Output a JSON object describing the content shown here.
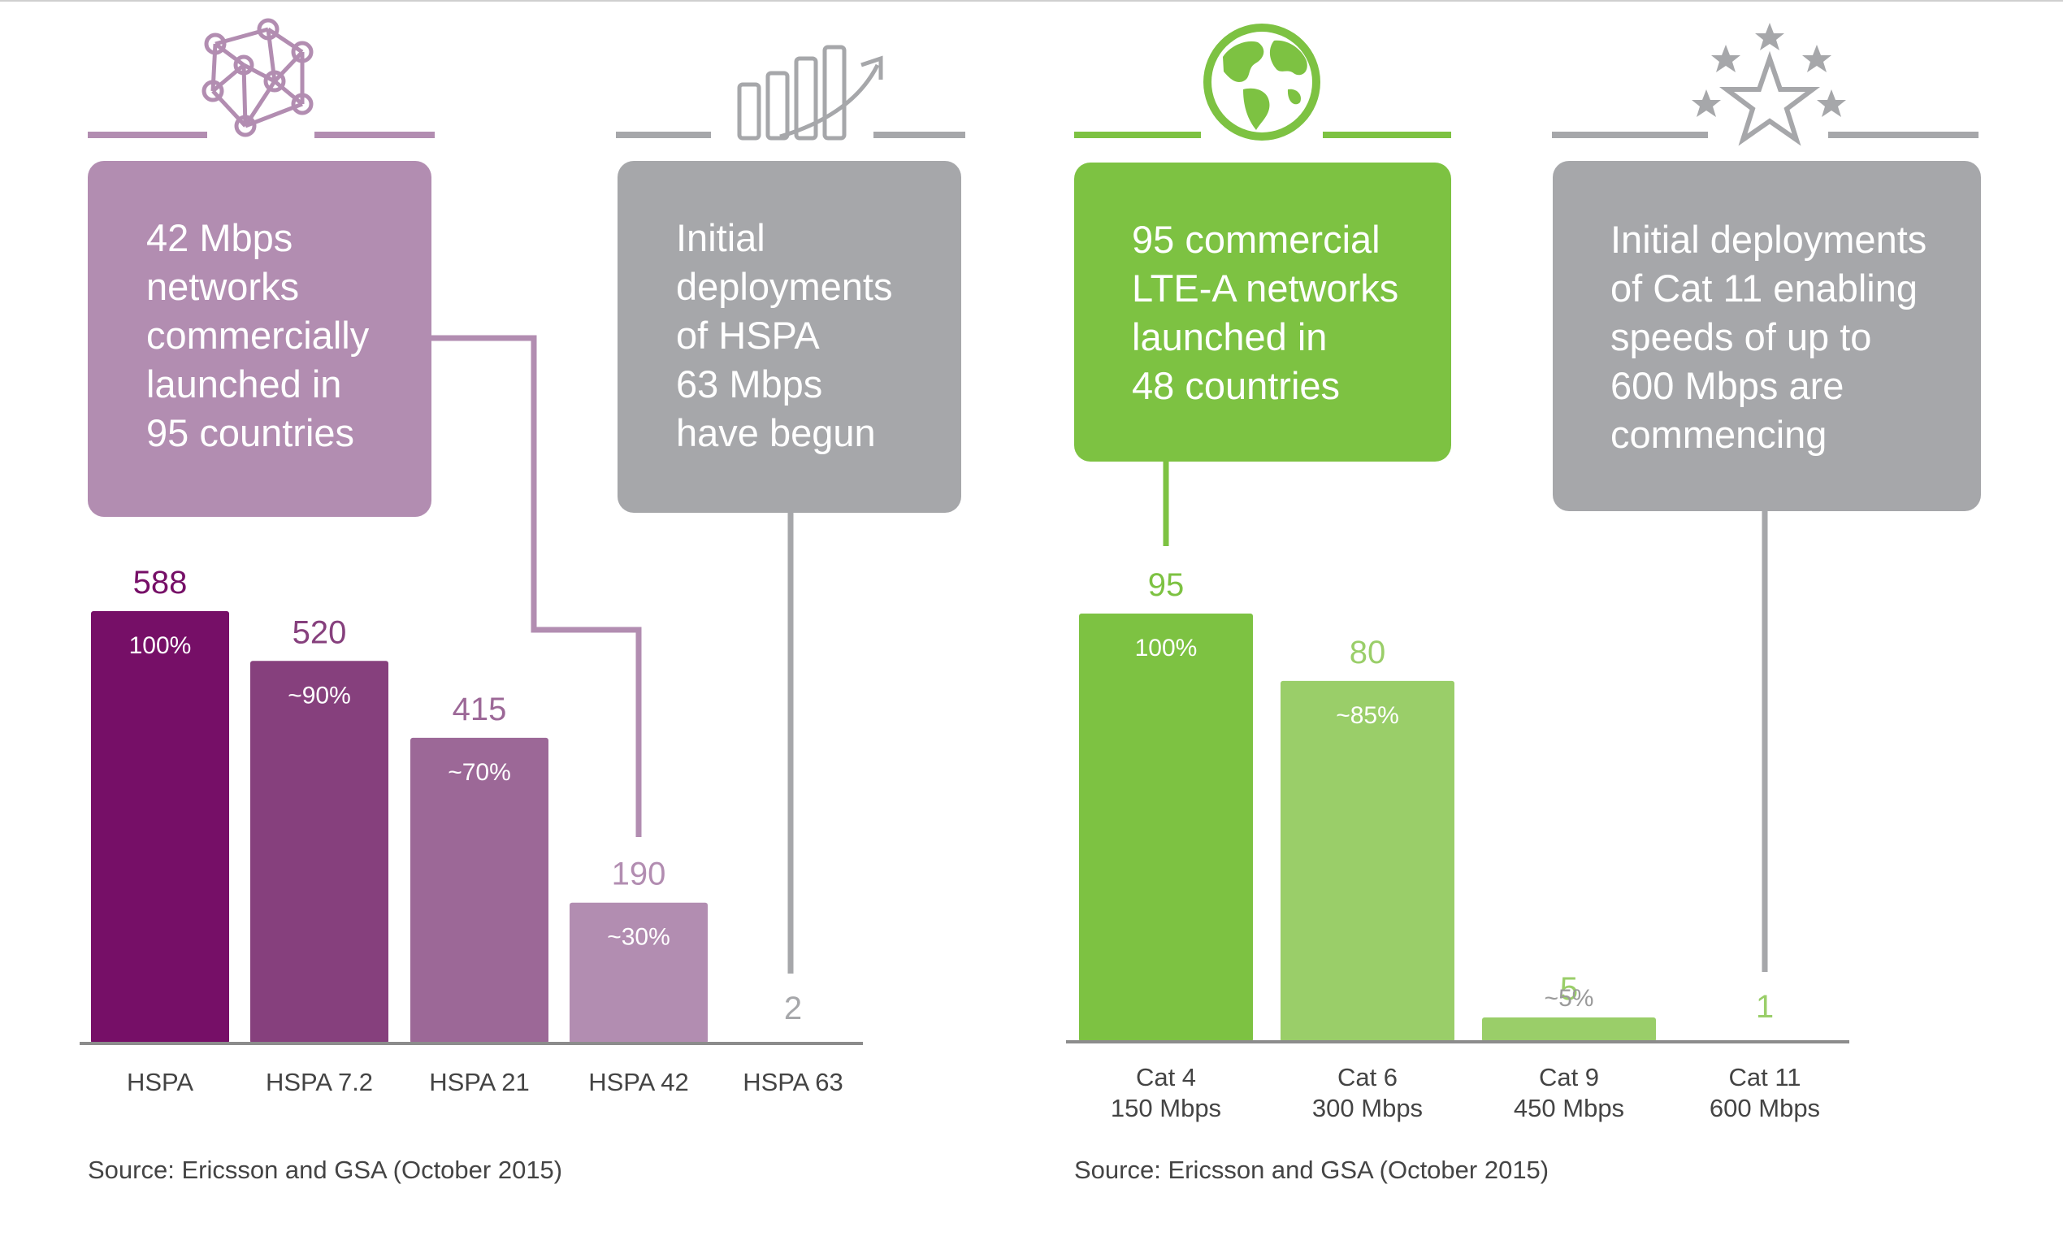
{
  "colors": {
    "purple_1": "#760f67",
    "purple_2": "#86407d",
    "purple_3": "#9c6897",
    "purple_4": "#b28db1",
    "gray_box": "#a6a7aa",
    "green_1": "#7dc242",
    "green_2": "#9ace69",
    "axis": "#8c8c8c"
  },
  "icons": [
    "network-icon",
    "growth-chart-icon",
    "globe-icon",
    "stars-icon"
  ],
  "callouts": [
    {
      "lines": [
        "42 Mbps",
        "networks",
        "commercially",
        "launched in",
        "95 countries"
      ]
    },
    {
      "lines": [
        "Initial",
        "deployments",
        "of HSPA",
        "63 Mbps",
        "have begun"
      ]
    },
    {
      "lines": [
        "95 commercial",
        "LTE-A networks",
        "launched in",
        "48 countries"
      ]
    },
    {
      "lines": [
        "Initial deployments",
        "of Cat 11 enabling",
        "speeds of up to",
        "600 Mbps are",
        "commencing"
      ]
    }
  ],
  "chart_data": [
    {
      "type": "bar",
      "categories": [
        "HSPA",
        "HSPA 7.2",
        "HSPA 21",
        "HSPA 42",
        "HSPA 63"
      ],
      "values": [
        588,
        520,
        415,
        190,
        2
      ],
      "value_labels": [
        "588",
        "520",
        "415",
        "190",
        "2"
      ],
      "share_labels": [
        "100%",
        "~90%",
        "~70%",
        "~30%",
        ""
      ],
      "ylim": [
        0,
        588
      ],
      "grid": false,
      "source": "Source: Ericsson and GSA (October 2015)"
    },
    {
      "type": "bar",
      "categories": [
        "Cat 4\n150 Mbps",
        "Cat 6\n300 Mbps",
        "Cat 9\n450 Mbps",
        "Cat 11\n600 Mbps"
      ],
      "category_lines": [
        [
          "Cat 4",
          "150 Mbps"
        ],
        [
          "Cat 6",
          "300 Mbps"
        ],
        [
          "Cat 9",
          "450 Mbps"
        ],
        [
          "Cat 11",
          "600 Mbps"
        ]
      ],
      "values": [
        95,
        80,
        5,
        1
      ],
      "value_labels": [
        "95",
        "80",
        "5",
        "1"
      ],
      "share_labels": [
        "100%",
        "~85%",
        "~5%",
        ""
      ],
      "ylim": [
        0,
        95
      ],
      "grid": false,
      "source": "Source: Ericsson and GSA (October 2015)"
    }
  ]
}
